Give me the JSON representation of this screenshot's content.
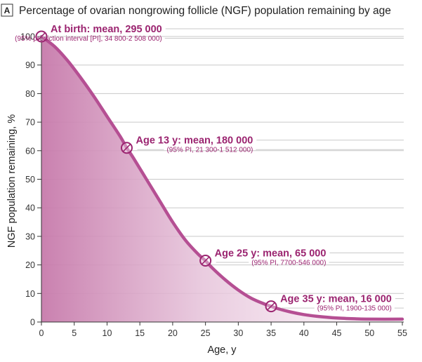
{
  "panel_label": "A",
  "chart_data": {
    "type": "area",
    "title": "Percentage of ovarian nongrowing follicle (NGF) population remaining by age",
    "xlabel": "Age, y",
    "ylabel": "NGF population remaining, %",
    "xlim": [
      0,
      55
    ],
    "ylim": [
      0,
      100
    ],
    "xticks": [
      0,
      5,
      10,
      15,
      20,
      25,
      30,
      35,
      40,
      45,
      50,
      55
    ],
    "yticks": [
      0,
      10,
      20,
      30,
      40,
      50,
      60,
      70,
      80,
      90,
      100
    ],
    "grid": true,
    "series": [
      {
        "name": "NGF population remaining",
        "x": [
          0,
          2,
          4,
          6,
          8,
          10,
          12,
          13,
          14,
          16,
          18,
          20,
          22,
          24,
          25,
          26,
          28,
          30,
          32,
          34,
          35,
          36,
          38,
          40,
          42,
          45,
          48,
          50,
          55
        ],
        "y": [
          100,
          96.5,
          91.5,
          85.5,
          79,
          72,
          65,
          61,
          57.5,
          50,
          42.5,
          35,
          28.5,
          23.5,
          21.5,
          19,
          14.8,
          11.2,
          8.3,
          6.3,
          5.5,
          4.7,
          3.5,
          2.6,
          2.0,
          1.4,
          1.1,
          1.0,
          1.0
        ],
        "color": "#b54f93"
      }
    ],
    "annotations": [
      {
        "x": 0,
        "y": 100,
        "label": "At birth: mean, 295 000",
        "detail": "(95% prediction interval [PI], 34 800-2 508 000)"
      },
      {
        "x": 13,
        "y": 61,
        "label": "Age 13 y: mean, 180 000",
        "detail": "(95% PI, 21 300-1 512 000)"
      },
      {
        "x": 25,
        "y": 21.5,
        "label": "Age 25 y: mean, 65 000",
        "detail": "(95% PI, 7700-546 000)"
      },
      {
        "x": 35,
        "y": 5.5,
        "label": "Age 35 y: mean, 16 000",
        "detail": "(95% PI, 1900-135 000)"
      }
    ],
    "colors": {
      "curve": "#b54f93",
      "annotation": "#9b2470",
      "fill_dark": "#c77aab",
      "fill_light": "#fbf3f8"
    }
  }
}
